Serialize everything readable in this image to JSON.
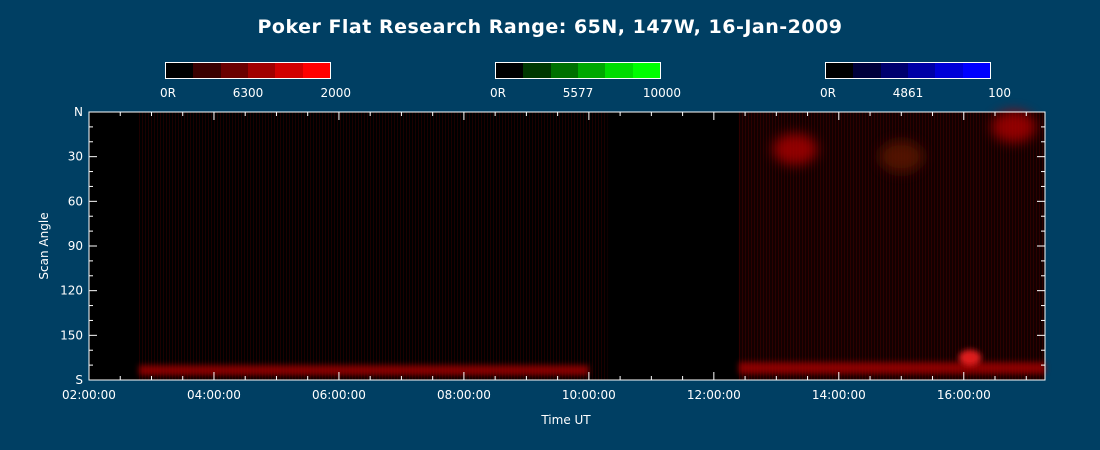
{
  "title": "Poker Flat Research Range: 65N, 147W, 16-Jan-2009",
  "colorbars": [
    {
      "min_label": "0R",
      "wavelength": "6300",
      "max_label": "2000",
      "colors": [
        "#000000",
        "#3a0000",
        "#6a0000",
        "#a00000",
        "#d20000",
        "#ff0000"
      ]
    },
    {
      "min_label": "0R",
      "wavelength": "5577",
      "max_label": "10000",
      "colors": [
        "#000000",
        "#003800",
        "#007000",
        "#00a800",
        "#00dc00",
        "#00ff00"
      ]
    },
    {
      "min_label": "0R",
      "wavelength": "4861",
      "max_label": "100",
      "colors": [
        "#000000",
        "#00003a",
        "#00006e",
        "#0000a6",
        "#0000d8",
        "#0000ff"
      ]
    }
  ],
  "chart_data": {
    "type": "heatmap",
    "title": "Poker Flat Research Range: 65N, 147W, 16-Jan-2009",
    "xlabel": "Time UT",
    "ylabel": "Scan Angle",
    "x_ticks": [
      "02:00:00",
      "04:00:00",
      "06:00:00",
      "08:00:00",
      "10:00:00",
      "12:00:00",
      "14:00:00",
      "16:00:00"
    ],
    "y_ticks": [
      "N",
      "30",
      "60",
      "90",
      "120",
      "150",
      "S"
    ],
    "xlim_hours": [
      2.0,
      17.3
    ],
    "ylim_deg": [
      0,
      180
    ],
    "data_start_hour": 2.78,
    "gap_hours": [
      10.3,
      12.4
    ],
    "features": [
      {
        "kind": "band",
        "x0": 2.8,
        "x1": 10.0,
        "y0": 170,
        "y1": 177,
        "intensity": "moderate"
      },
      {
        "kind": "band",
        "x0": 12.4,
        "x1": 17.3,
        "y0": 168,
        "y1": 176,
        "intensity": "moderate"
      },
      {
        "kind": "patch",
        "x": 16.1,
        "y": 165,
        "intensity": "high"
      },
      {
        "kind": "patch",
        "x": 13.3,
        "y": 25,
        "intensity": "moderate"
      },
      {
        "kind": "patch",
        "x": 15.0,
        "y": 30,
        "intensity": "low"
      },
      {
        "kind": "patch",
        "x": 16.8,
        "y": 10,
        "intensity": "moderate"
      }
    ]
  }
}
